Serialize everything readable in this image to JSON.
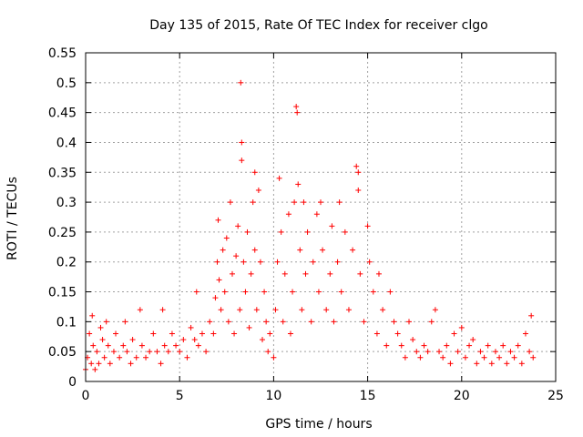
{
  "chart_data": {
    "type": "scatter",
    "title": "Day 135 of 2015, Rate Of TEC Index for receiver clgo",
    "xlabel": "GPS time / hours",
    "ylabel": "ROTI / TECUs",
    "xlim": [
      0,
      25
    ],
    "ylim": [
      0,
      0.55
    ],
    "xticks": [
      0,
      5,
      10,
      15,
      20,
      25
    ],
    "xtick_labels": [
      "0",
      "5",
      "10",
      "15",
      "20",
      "25"
    ],
    "yticks": [
      0,
      0.05,
      0.1,
      0.15,
      0.2,
      0.25,
      0.3,
      0.35,
      0.4,
      0.45,
      0.5,
      0.55
    ],
    "ytick_labels": [
      "0",
      "0.05",
      "0.1",
      "0.15",
      "0.2",
      "0.25",
      "0.3",
      "0.35",
      "0.4",
      "0.45",
      "0.5",
      "0.55"
    ],
    "grid": true,
    "marker": "+",
    "color": "#ff0000",
    "series": [
      {
        "name": "ROTI",
        "points": [
          [
            0.0,
            0.02
          ],
          [
            0.1,
            0.04
          ],
          [
            0.2,
            0.08
          ],
          [
            0.3,
            0.03
          ],
          [
            0.35,
            0.11
          ],
          [
            0.4,
            0.06
          ],
          [
            0.5,
            0.02
          ],
          [
            0.6,
            0.05
          ],
          [
            0.7,
            0.03
          ],
          [
            0.8,
            0.09
          ],
          [
            0.9,
            0.07
          ],
          [
            1.0,
            0.04
          ],
          [
            1.1,
            0.1
          ],
          [
            1.2,
            0.06
          ],
          [
            1.3,
            0.03
          ],
          [
            1.5,
            0.05
          ],
          [
            1.6,
            0.08
          ],
          [
            1.8,
            0.04
          ],
          [
            2.0,
            0.06
          ],
          [
            2.1,
            0.1
          ],
          [
            2.2,
            0.05
          ],
          [
            2.4,
            0.03
          ],
          [
            2.5,
            0.07
          ],
          [
            2.7,
            0.04
          ],
          [
            2.9,
            0.12
          ],
          [
            3.0,
            0.06
          ],
          [
            3.2,
            0.04
          ],
          [
            3.4,
            0.05
          ],
          [
            3.6,
            0.08
          ],
          [
            3.8,
            0.05
          ],
          [
            4.0,
            0.03
          ],
          [
            4.1,
            0.12
          ],
          [
            4.2,
            0.06
          ],
          [
            4.4,
            0.05
          ],
          [
            4.6,
            0.08
          ],
          [
            4.8,
            0.06
          ],
          [
            5.0,
            0.05
          ],
          [
            5.2,
            0.07
          ],
          [
            5.4,
            0.04
          ],
          [
            5.6,
            0.09
          ],
          [
            5.8,
            0.07
          ],
          [
            5.9,
            0.15
          ],
          [
            6.0,
            0.06
          ],
          [
            6.2,
            0.08
          ],
          [
            6.4,
            0.05
          ],
          [
            6.6,
            0.1
          ],
          [
            6.8,
            0.08
          ],
          [
            6.9,
            0.14
          ],
          [
            7.0,
            0.2
          ],
          [
            7.05,
            0.27
          ],
          [
            7.1,
            0.17
          ],
          [
            7.2,
            0.12
          ],
          [
            7.3,
            0.22
          ],
          [
            7.4,
            0.15
          ],
          [
            7.5,
            0.24
          ],
          [
            7.6,
            0.1
          ],
          [
            7.7,
            0.3
          ],
          [
            7.8,
            0.18
          ],
          [
            7.9,
            0.08
          ],
          [
            8.0,
            0.21
          ],
          [
            8.1,
            0.26
          ],
          [
            8.2,
            0.12
          ],
          [
            8.25,
            0.5
          ],
          [
            8.3,
            0.4
          ],
          [
            8.3,
            0.37
          ],
          [
            8.4,
            0.2
          ],
          [
            8.5,
            0.15
          ],
          [
            8.6,
            0.25
          ],
          [
            8.7,
            0.09
          ],
          [
            8.8,
            0.18
          ],
          [
            8.9,
            0.3
          ],
          [
            9.0,
            0.35
          ],
          [
            9.0,
            0.22
          ],
          [
            9.1,
            0.12
          ],
          [
            9.2,
            0.32
          ],
          [
            9.3,
            0.2
          ],
          [
            9.4,
            0.07
          ],
          [
            9.5,
            0.15
          ],
          [
            9.6,
            0.1
          ],
          [
            9.7,
            0.05
          ],
          [
            9.8,
            0.08
          ],
          [
            10.0,
            0.04
          ],
          [
            10.1,
            0.12
          ],
          [
            10.2,
            0.2
          ],
          [
            10.3,
            0.34
          ],
          [
            10.4,
            0.25
          ],
          [
            10.5,
            0.1
          ],
          [
            10.6,
            0.18
          ],
          [
            10.8,
            0.28
          ],
          [
            10.9,
            0.08
          ],
          [
            11.0,
            0.15
          ],
          [
            11.1,
            0.3
          ],
          [
            11.2,
            0.46
          ],
          [
            11.25,
            0.45
          ],
          [
            11.3,
            0.33
          ],
          [
            11.4,
            0.22
          ],
          [
            11.5,
            0.12
          ],
          [
            11.6,
            0.3
          ],
          [
            11.7,
            0.18
          ],
          [
            11.8,
            0.25
          ],
          [
            12.0,
            0.1
          ],
          [
            12.1,
            0.2
          ],
          [
            12.3,
            0.28
          ],
          [
            12.4,
            0.15
          ],
          [
            12.5,
            0.3
          ],
          [
            12.6,
            0.22
          ],
          [
            12.8,
            0.12
          ],
          [
            13.0,
            0.18
          ],
          [
            13.1,
            0.26
          ],
          [
            13.2,
            0.1
          ],
          [
            13.4,
            0.2
          ],
          [
            13.5,
            0.3
          ],
          [
            13.6,
            0.15
          ],
          [
            13.8,
            0.25
          ],
          [
            14.0,
            0.12
          ],
          [
            14.2,
            0.22
          ],
          [
            14.4,
            0.36
          ],
          [
            14.5,
            0.35
          ],
          [
            14.5,
            0.32
          ],
          [
            14.6,
            0.18
          ],
          [
            14.8,
            0.1
          ],
          [
            15.0,
            0.26
          ],
          [
            15.1,
            0.2
          ],
          [
            15.3,
            0.15
          ],
          [
            15.5,
            0.08
          ],
          [
            15.6,
            0.18
          ],
          [
            15.8,
            0.12
          ],
          [
            16.0,
            0.06
          ],
          [
            16.2,
            0.15
          ],
          [
            16.4,
            0.1
          ],
          [
            16.6,
            0.08
          ],
          [
            16.8,
            0.06
          ],
          [
            17.0,
            0.04
          ],
          [
            17.2,
            0.1
          ],
          [
            17.4,
            0.07
          ],
          [
            17.6,
            0.05
          ],
          [
            17.8,
            0.04
          ],
          [
            18.0,
            0.06
          ],
          [
            18.2,
            0.05
          ],
          [
            18.4,
            0.1
          ],
          [
            18.6,
            0.12
          ],
          [
            18.8,
            0.05
          ],
          [
            19.0,
            0.04
          ],
          [
            19.2,
            0.06
          ],
          [
            19.4,
            0.03
          ],
          [
            19.6,
            0.08
          ],
          [
            19.8,
            0.05
          ],
          [
            20.0,
            0.09
          ],
          [
            20.2,
            0.04
          ],
          [
            20.4,
            0.06
          ],
          [
            20.6,
            0.07
          ],
          [
            20.8,
            0.03
          ],
          [
            21.0,
            0.05
          ],
          [
            21.2,
            0.04
          ],
          [
            21.4,
            0.06
          ],
          [
            21.6,
            0.03
          ],
          [
            21.8,
            0.05
          ],
          [
            22.0,
            0.04
          ],
          [
            22.2,
            0.06
          ],
          [
            22.4,
            0.03
          ],
          [
            22.6,
            0.05
          ],
          [
            22.8,
            0.04
          ],
          [
            23.0,
            0.06
          ],
          [
            23.2,
            0.03
          ],
          [
            23.4,
            0.08
          ],
          [
            23.6,
            0.05
          ],
          [
            23.7,
            0.11
          ],
          [
            23.8,
            0.04
          ]
        ]
      }
    ]
  }
}
